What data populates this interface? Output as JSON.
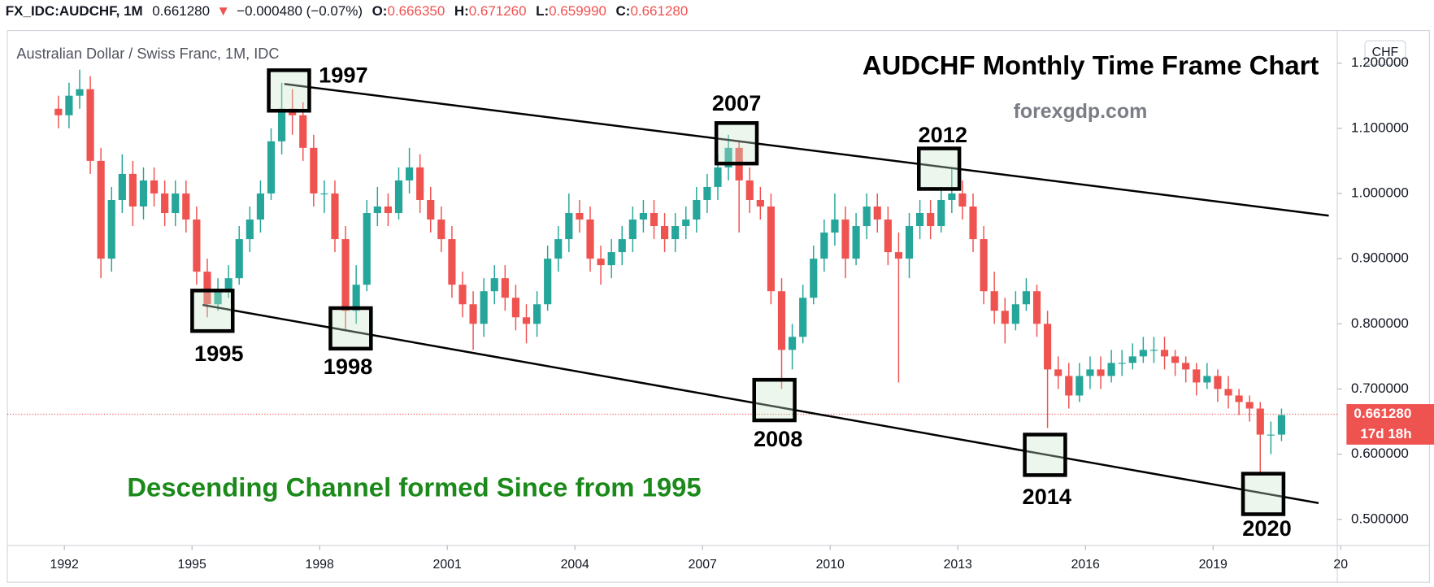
{
  "header": {
    "symbol": "FX_IDC:AUDCHF, 1M",
    "last": "0.661280",
    "arrow": "▼",
    "change": "−0.000480 (−0.07%)",
    "o_label": "O:",
    "o": "0.666350",
    "h_label": "H:",
    "h": "0.671260",
    "l_label": "L:",
    "l": "0.659990",
    "c_label": "C:",
    "c": "0.661280"
  },
  "chart_data": {
    "type": "candlestick",
    "title": "AUDCHF Monthly Time Frame Chart",
    "subtitle": "Australian Dollar / Swiss Franc, 1M, IDC",
    "source": "forexgdp.com",
    "annotation": "Descending Channel formed Since from 1995",
    "y_unit": "CHF",
    "up_color": "#26a69a",
    "down_color": "#ef5350",
    "x": [
      1991.75,
      1992,
      1992.25,
      1992.5,
      1992.75,
      1993,
      1993.25,
      1993.5,
      1993.75,
      1994,
      1994.25,
      1994.5,
      1994.75,
      1995,
      1995.25,
      1995.5,
      1995.75,
      1996,
      1996.25,
      1996.5,
      1996.75,
      1997,
      1997.25,
      1997.5,
      1997.75,
      1998,
      1998.25,
      1998.5,
      1998.75,
      1999,
      1999.25,
      1999.5,
      1999.75,
      2000,
      2000.25,
      2000.5,
      2000.75,
      2001,
      2001.25,
      2001.5,
      2001.75,
      2002,
      2002.25,
      2002.5,
      2002.75,
      2003,
      2003.25,
      2003.5,
      2003.75,
      2004,
      2004.25,
      2004.5,
      2004.75,
      2005,
      2005.25,
      2005.5,
      2005.75,
      2006,
      2006.25,
      2006.5,
      2006.75,
      2007,
      2007.25,
      2007.5,
      2007.75,
      2008,
      2008.25,
      2008.5,
      2008.75,
      2009,
      2009.25,
      2009.5,
      2009.75,
      2010,
      2010.25,
      2010.5,
      2010.75,
      2011,
      2011.25,
      2011.5,
      2011.75,
      2012,
      2012.25,
      2012.5,
      2012.75,
      2013,
      2013.25,
      2013.5,
      2013.75,
      2014,
      2014.25,
      2014.5,
      2014.75,
      2015,
      2015.25,
      2015.5,
      2015.75,
      2016,
      2016.25,
      2016.5,
      2016.75,
      2017,
      2017.25,
      2017.5,
      2017.75,
      2018,
      2018.25,
      2018.5,
      2018.75,
      2019,
      2019.25,
      2019.5,
      2019.75,
      2020,
      2020.25,
      2020.5
    ],
    "open": [
      1.13,
      1.12,
      1.15,
      1.16,
      1.05,
      0.9,
      0.99,
      1.03,
      0.98,
      1.02,
      1.0,
      0.97,
      1.0,
      0.96,
      0.88,
      0.83,
      0.85,
      0.87,
      0.93,
      0.96,
      1.0,
      1.08,
      1.13,
      1.12,
      1.07,
      1.0,
      1.0,
      0.93,
      0.82,
      0.86,
      0.97,
      0.98,
      0.97,
      1.02,
      1.04,
      0.99,
      0.96,
      0.93,
      0.86,
      0.83,
      0.8,
      0.85,
      0.87,
      0.84,
      0.81,
      0.8,
      0.83,
      0.9,
      0.93,
      0.97,
      0.96,
      0.9,
      0.89,
      0.91,
      0.93,
      0.96,
      0.97,
      0.95,
      0.93,
      0.95,
      0.96,
      0.99,
      1.01,
      1.04,
      1.07,
      1.02,
      0.99,
      0.98,
      0.85,
      0.76,
      0.78,
      0.84,
      0.9,
      0.94,
      0.96,
      0.9,
      0.95,
      0.98,
      0.96,
      0.91,
      0.9,
      0.95,
      0.97,
      0.95,
      0.99,
      1.0,
      0.98,
      0.93,
      0.85,
      0.82,
      0.8,
      0.83,
      0.85,
      0.8,
      0.73,
      0.72,
      0.69,
      0.72,
      0.73,
      0.72,
      0.74,
      0.74,
      0.75,
      0.76,
      0.76,
      0.75,
      0.74,
      0.73,
      0.71,
      0.72,
      0.7,
      0.69,
      0.68,
      0.67,
      0.63,
      0.63
    ],
    "high": [
      1.15,
      1.17,
      1.19,
      1.18,
      1.07,
      1.01,
      1.06,
      1.05,
      1.04,
      1.04,
      1.02,
      1.02,
      1.02,
      0.98,
      0.9,
      0.87,
      0.89,
      0.95,
      0.98,
      1.02,
      1.1,
      1.17,
      1.16,
      1.14,
      1.09,
      1.02,
      1.02,
      0.95,
      0.89,
      0.99,
      1.01,
      1.0,
      1.04,
      1.07,
      1.06,
      1.01,
      0.98,
      0.95,
      0.88,
      0.85,
      0.87,
      0.89,
      0.89,
      0.86,
      0.83,
      0.85,
      0.92,
      0.95,
      1.0,
      0.99,
      0.98,
      0.92,
      0.93,
      0.95,
      0.98,
      0.99,
      0.99,
      0.97,
      0.97,
      0.98,
      1.01,
      1.03,
      1.06,
      1.09,
      1.08,
      1.04,
      1.01,
      1.0,
      0.87,
      0.8,
      0.86,
      0.92,
      0.96,
      1.0,
      0.98,
      0.97,
      1.0,
      1.0,
      0.98,
      0.94,
      0.97,
      0.99,
      0.99,
      1.01,
      1.04,
      1.02,
      1.0,
      0.95,
      0.88,
      0.84,
      0.85,
      0.87,
      0.86,
      0.82,
      0.75,
      0.74,
      0.74,
      0.75,
      0.75,
      0.76,
      0.76,
      0.77,
      0.78,
      0.78,
      0.78,
      0.76,
      0.75,
      0.74,
      0.74,
      0.73,
      0.72,
      0.7,
      0.69,
      0.68,
      0.65,
      0.67
    ],
    "low": [
      1.1,
      1.1,
      1.13,
      1.03,
      0.87,
      0.88,
      0.97,
      0.95,
      0.96,
      0.98,
      0.95,
      0.95,
      0.94,
      0.86,
      0.81,
      0.82,
      0.84,
      0.86,
      0.91,
      0.94,
      0.99,
      1.06,
      1.09,
      1.05,
      0.98,
      0.97,
      0.91,
      0.79,
      0.8,
      0.85,
      0.95,
      0.95,
      0.96,
      1.0,
      0.97,
      0.94,
      0.91,
      0.84,
      0.81,
      0.76,
      0.78,
      0.83,
      0.82,
      0.79,
      0.77,
      0.78,
      0.82,
      0.88,
      0.91,
      0.94,
      0.88,
      0.86,
      0.87,
      0.89,
      0.91,
      0.94,
      0.93,
      0.91,
      0.91,
      0.93,
      0.94,
      0.97,
      0.99,
      1.02,
      0.94,
      0.97,
      0.96,
      0.83,
      0.7,
      0.73,
      0.77,
      0.83,
      0.88,
      0.92,
      0.87,
      0.89,
      0.93,
      0.94,
      0.89,
      0.71,
      0.87,
      0.93,
      0.93,
      0.94,
      0.97,
      0.96,
      0.91,
      0.83,
      0.8,
      0.77,
      0.79,
      0.82,
      0.78,
      0.64,
      0.7,
      0.67,
      0.68,
      0.7,
      0.7,
      0.71,
      0.72,
      0.73,
      0.74,
      0.74,
      0.73,
      0.72,
      0.71,
      0.69,
      0.7,
      0.68,
      0.67,
      0.66,
      0.65,
      0.57,
      0.6,
      0.62
    ],
    "close": [
      1.12,
      1.15,
      1.16,
      1.05,
      0.9,
      0.99,
      1.03,
      0.98,
      1.02,
      1.0,
      0.97,
      1.0,
      0.96,
      0.88,
      0.83,
      0.85,
      0.87,
      0.93,
      0.96,
      1.0,
      1.08,
      1.13,
      1.12,
      1.07,
      1.0,
      1.0,
      0.93,
      0.82,
      0.86,
      0.97,
      0.98,
      0.97,
      1.02,
      1.04,
      0.99,
      0.96,
      0.93,
      0.86,
      0.83,
      0.8,
      0.85,
      0.87,
      0.84,
      0.81,
      0.8,
      0.83,
      0.9,
      0.93,
      0.97,
      0.96,
      0.9,
      0.89,
      0.91,
      0.93,
      0.96,
      0.97,
      0.95,
      0.93,
      0.95,
      0.96,
      0.99,
      1.01,
      1.04,
      1.07,
      1.02,
      0.99,
      0.98,
      0.85,
      0.76,
      0.78,
      0.84,
      0.9,
      0.94,
      0.96,
      0.9,
      0.95,
      0.98,
      0.96,
      0.91,
      0.9,
      0.95,
      0.97,
      0.95,
      0.99,
      1.0,
      0.98,
      0.93,
      0.85,
      0.82,
      0.8,
      0.83,
      0.85,
      0.8,
      0.73,
      0.72,
      0.69,
      0.72,
      0.73,
      0.72,
      0.74,
      0.74,
      0.75,
      0.76,
      0.76,
      0.75,
      0.74,
      0.73,
      0.71,
      0.72,
      0.7,
      0.69,
      0.68,
      0.67,
      0.63,
      0.63,
      0.66
    ],
    "xlim": [
      1990.66,
      2021.92
    ],
    "xticks": [
      1992,
      1995,
      1998,
      2001,
      2004,
      2007,
      2010,
      2013,
      2016,
      2019,
      {
        "value": 2022,
        "label": "20"
      }
    ],
    "ylim": [
      0.46,
      1.25
    ],
    "yticks": [
      {
        "value": 0.5,
        "label": "0.500000"
      },
      {
        "value": 0.6,
        "label": "0.600000"
      },
      {
        "value": 0.7,
        "label": "0.700000"
      },
      {
        "value": 0.8,
        "label": "0.800000"
      },
      {
        "value": 0.9,
        "label": "0.900000"
      },
      {
        "value": 1.0,
        "label": "1.000000"
      },
      {
        "value": 1.1,
        "label": "1.100000"
      },
      {
        "value": 1.2,
        "label": "1.200000"
      }
    ],
    "last_price": {
      "value": 0.66128,
      "label": "0.661280"
    },
    "countdown": "17d 18h",
    "trendlines": [
      {
        "x": [
          1997.17,
          2021.72
        ],
        "y": [
          1.168,
          0.966
        ]
      },
      {
        "x": [
          1995.25,
          2021.48
        ],
        "y": [
          0.829,
          0.525
        ]
      }
    ],
    "markers": [
      {
        "label": "1997",
        "x": 1997.28,
        "y": 1.158
      },
      {
        "label": "2007",
        "x": 2007.8,
        "y": 1.077
      },
      {
        "label": "2012",
        "x": 2012.56,
        "y": 1.038
      },
      {
        "label": "1995",
        "x": 1995.48,
        "y": 0.82
      },
      {
        "label": "1998",
        "x": 1998.73,
        "y": 0.793
      },
      {
        "label": "2008",
        "x": 2008.69,
        "y": 0.683
      },
      {
        "label": "2014",
        "x": 2015.05,
        "y": 0.599
      },
      {
        "label": "2020",
        "x": 2020.18,
        "y": 0.539
      }
    ]
  }
}
